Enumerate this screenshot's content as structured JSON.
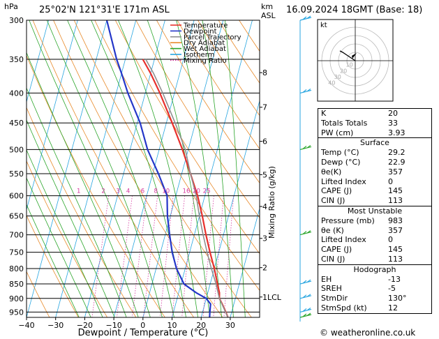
{
  "header": {
    "location": "25°02'N  121°31'E  171m  ASL",
    "datetime": "16.09.2024  18GMT  (Base: 18)",
    "hpa_label": "hPa",
    "km_label": "km",
    "asl_label": "ASL"
  },
  "legend": [
    {
      "label": "Temperature",
      "color": "#e8302c"
    },
    {
      "label": "Dewpoint",
      "color": "#2436c8"
    },
    {
      "label": "Parcel Trajectory",
      "color": "#909090"
    },
    {
      "label": "Dry Adiabat",
      "color": "#e88a2a"
    },
    {
      "label": "Wet Adiabat",
      "color": "#2aa52a"
    },
    {
      "label": "Isotherm",
      "color": "#27a5e0"
    },
    {
      "label": "Mixing Ratio",
      "color": "#d4359c"
    }
  ],
  "chart_data": {
    "type": "line",
    "title": "",
    "xlabel": "Dewpoint / Temperature (°C)",
    "ylabel": "hPa",
    "right_label": "Mixing Ratio (g/kg)",
    "xlim": [
      -40,
      40
    ],
    "ylim": [
      300,
      970
    ],
    "pressure_ticks": [
      300,
      350,
      400,
      450,
      500,
      550,
      600,
      650,
      700,
      750,
      800,
      850,
      900,
      950
    ],
    "x_ticks": [
      -40,
      -30,
      -20,
      -10,
      0,
      10,
      20,
      30
    ],
    "km_ticks": [
      {
        "label": "8",
        "p": 369
      },
      {
        "label": "7",
        "p": 423
      },
      {
        "label": "6",
        "p": 484
      },
      {
        "label": "5",
        "p": 552
      },
      {
        "label": "4",
        "p": 626
      },
      {
        "label": "3",
        "p": 710
      },
      {
        "label": "2",
        "p": 797
      },
      {
        "label": "1LCL",
        "p": 895
      }
    ],
    "mixing_ratio_labels": [
      {
        "label": "1",
        "x": -7
      },
      {
        "label": "2",
        "x": 1.5
      },
      {
        "label": "3",
        "x": 6.5
      },
      {
        "label": "4",
        "x": 10
      },
      {
        "label": "6",
        "x": 15
      },
      {
        "label": "8",
        "x": 19.5
      },
      {
        "label": "10",
        "x": 23
      },
      {
        "label": "16",
        "x": 30
      },
      {
        "label": "20",
        "x": 33.5
      },
      {
        "label": "25",
        "x": 37
      }
    ],
    "series": [
      {
        "name": "Temperature",
        "color": "#e8302c",
        "points": [
          [
            970,
            29.2
          ],
          [
            950,
            28
          ],
          [
            920,
            26
          ],
          [
            900,
            24.5
          ],
          [
            880,
            24
          ],
          [
            850,
            22.5
          ],
          [
            800,
            20
          ],
          [
            750,
            17
          ],
          [
            700,
            14
          ],
          [
            650,
            11
          ],
          [
            600,
            7.5
          ],
          [
            550,
            3
          ],
          [
            500,
            -2
          ],
          [
            450,
            -8
          ],
          [
            400,
            -15
          ],
          [
            370,
            -20
          ],
          [
            350,
            -24
          ]
        ]
      },
      {
        "name": "Dewpoint",
        "color": "#2436c8",
        "points": [
          [
            970,
            22.9
          ],
          [
            950,
            22.5
          ],
          [
            920,
            22
          ],
          [
            900,
            20
          ],
          [
            880,
            16
          ],
          [
            850,
            11
          ],
          [
            800,
            7
          ],
          [
            750,
            4
          ],
          [
            700,
            1.5
          ],
          [
            650,
            -1
          ],
          [
            600,
            -3
          ],
          [
            550,
            -8
          ],
          [
            500,
            -14
          ],
          [
            450,
            -19
          ],
          [
            400,
            -26
          ],
          [
            370,
            -30
          ],
          [
            350,
            -33
          ],
          [
            300,
            -40
          ]
        ]
      },
      {
        "name": "Parcel Trajectory",
        "color": "#909090",
        "points": [
          [
            970,
            29.2
          ],
          [
            900,
            24.5
          ],
          [
            850,
            22
          ],
          [
            800,
            19
          ],
          [
            750,
            16
          ],
          [
            700,
            13
          ],
          [
            650,
            10
          ],
          [
            600,
            7
          ],
          [
            550,
            3
          ],
          [
            500,
            -1
          ],
          [
            450,
            -7
          ],
          [
            400,
            -14
          ],
          [
            370,
            -19
          ],
          [
            350,
            -23
          ]
        ]
      }
    ],
    "wind_barbs": [
      {
        "p": 300,
        "color": "#27a5e0"
      },
      {
        "p": 400,
        "color": "#27a5e0"
      },
      {
        "p": 500,
        "color": "#2aa52a"
      },
      {
        "p": 700,
        "color": "#2aa52a"
      },
      {
        "p": 850,
        "color": "#27a5e0"
      },
      {
        "p": 900,
        "color": "#27a5e0"
      },
      {
        "p": 950,
        "color": "#27a5e0"
      },
      {
        "p": 970,
        "color": "#2aa52a"
      }
    ],
    "hodograph": {
      "label": "kt",
      "ring_labels": [
        "10",
        "20",
        "30",
        "40"
      ]
    }
  },
  "indices": {
    "basic": [
      {
        "label": "K",
        "value": "20"
      },
      {
        "label": "Totals Totals",
        "value": "33"
      },
      {
        "label": "PW (cm)",
        "value": "3.93"
      }
    ],
    "surface": {
      "title": "Surface",
      "rows": [
        {
          "label": "Temp (°C)",
          "value": "29.2"
        },
        {
          "label": "Dewp (°C)",
          "value": "22.9"
        },
        {
          "label": "θe(K)",
          "value": "357"
        },
        {
          "label": "Lifted Index",
          "value": "0"
        },
        {
          "label": "CAPE (J)",
          "value": "145"
        },
        {
          "label": "CIN (J)",
          "value": "113"
        }
      ]
    },
    "most_unstable": {
      "title": "Most Unstable",
      "rows": [
        {
          "label": "Pressure (mb)",
          "value": "983"
        },
        {
          "label": "θe (K)",
          "value": "357"
        },
        {
          "label": "Lifted Index",
          "value": "0"
        },
        {
          "label": "CAPE (J)",
          "value": "145"
        },
        {
          "label": "CIN (J)",
          "value": "113"
        }
      ]
    },
    "hodograph": {
      "title": "Hodograph",
      "rows": [
        {
          "label": "EH",
          "value": "-13"
        },
        {
          "label": "SREH",
          "value": "-5"
        },
        {
          "label": "StmDir",
          "value": "130°"
        },
        {
          "label": "StmSpd (kt)",
          "value": "12"
        }
      ]
    }
  },
  "footer": {
    "copyright": "© weatheronline.co.uk"
  }
}
